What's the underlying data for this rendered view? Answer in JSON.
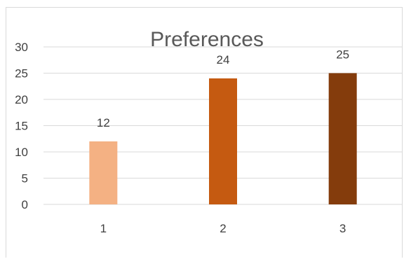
{
  "chart_data": {
    "type": "bar",
    "title": "Preferences",
    "categories": [
      "1",
      "2",
      "3"
    ],
    "values": [
      12,
      24,
      25
    ],
    "data_labels": [
      "12",
      "24",
      "25"
    ],
    "y_ticks": [
      "0",
      "5",
      "10",
      "15",
      "20",
      "25",
      "30"
    ],
    "ylim": [
      0,
      30
    ],
    "xlabel": "",
    "ylabel": "",
    "grid": true,
    "colors": [
      "#F4B183",
      "#C55A11",
      "#843C0C"
    ]
  }
}
